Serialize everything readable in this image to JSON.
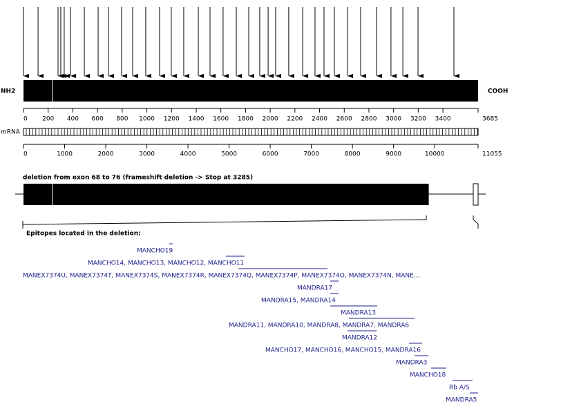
{
  "labels": {
    "nh2": "NH2",
    "cooh": "COOH",
    "mrna": "mRNA"
  },
  "protein_axis": {
    "length": 3685,
    "ticks": [
      0,
      200,
      400,
      600,
      800,
      1000,
      1200,
      1400,
      1600,
      1800,
      2000,
      2200,
      2400,
      2600,
      2800,
      3000,
      3200,
      3400,
      3685
    ]
  },
  "arrows": [
    0,
    118,
    280,
    302,
    330,
    381,
    493,
    605,
    689,
    795,
    885,
    991,
    1103,
    1198,
    1299,
    1417,
    1512,
    1618,
    1725,
    1826,
    1915,
    1983,
    2044,
    2150,
    2263,
    2363,
    2436,
    2520,
    2627,
    2733,
    2862,
    2979,
    3075,
    3198,
    3489
  ],
  "mrna_axis": {
    "length": 11055,
    "ticks": [
      0,
      1000,
      2000,
      3000,
      4000,
      5000,
      6000,
      7000,
      8000,
      9000,
      10000,
      11055
    ]
  },
  "deletion": {
    "title": "deletion from exon 68 to 76 (frameshift deletion -> Stop at 3285)",
    "stop": 3285
  },
  "epitopes_header": "Epitopes located in the deletion:",
  "epitopes": [
    {
      "label": "MANCHO19",
      "range": [
        1182,
        1210
      ]
    },
    {
      "label": "MANCHO14, MANCHO13, MANCHO12, MANCHO11",
      "range": [
        1641,
        1792
      ]
    },
    {
      "label": "MANEX7374U, MANEX7374T, MANEX7374S, MANEX7374R, MANEX7374Q, MANEX7374P, MANEX7374O, MANEX7374N, MANE...",
      "range": [
        1742,
        2464
      ]
    },
    {
      "label": "MANDRA17",
      "range": [
        2487,
        2554
      ]
    },
    {
      "label": "MANDRA15, MANDRA14",
      "range": [
        2487,
        2554
      ]
    },
    {
      "label": "MANDRA13",
      "range": [
        2487,
        2867
      ]
    },
    {
      "label": "MANDRA11, MANDRA10, MANDRA8, MANDRA7, MANDRA6",
      "range": [
        2638,
        3170
      ]
    },
    {
      "label": "MANDRA12",
      "range": [
        2627,
        2862
      ]
    },
    {
      "label": "MANCHO17, MANCHO16, MANCHO15, MANDRA16",
      "range": [
        3125,
        3231
      ]
    },
    {
      "label": "MANDRA3",
      "range": [
        3170,
        3282
      ]
    },
    {
      "label": "MANCHO18",
      "range": [
        3304,
        3427
      ]
    },
    {
      "label": "Rb A/S",
      "range": [
        3478,
        3640
      ]
    },
    {
      "label": "MANDRA5",
      "range": [
        3618,
        3685
      ]
    }
  ]
}
